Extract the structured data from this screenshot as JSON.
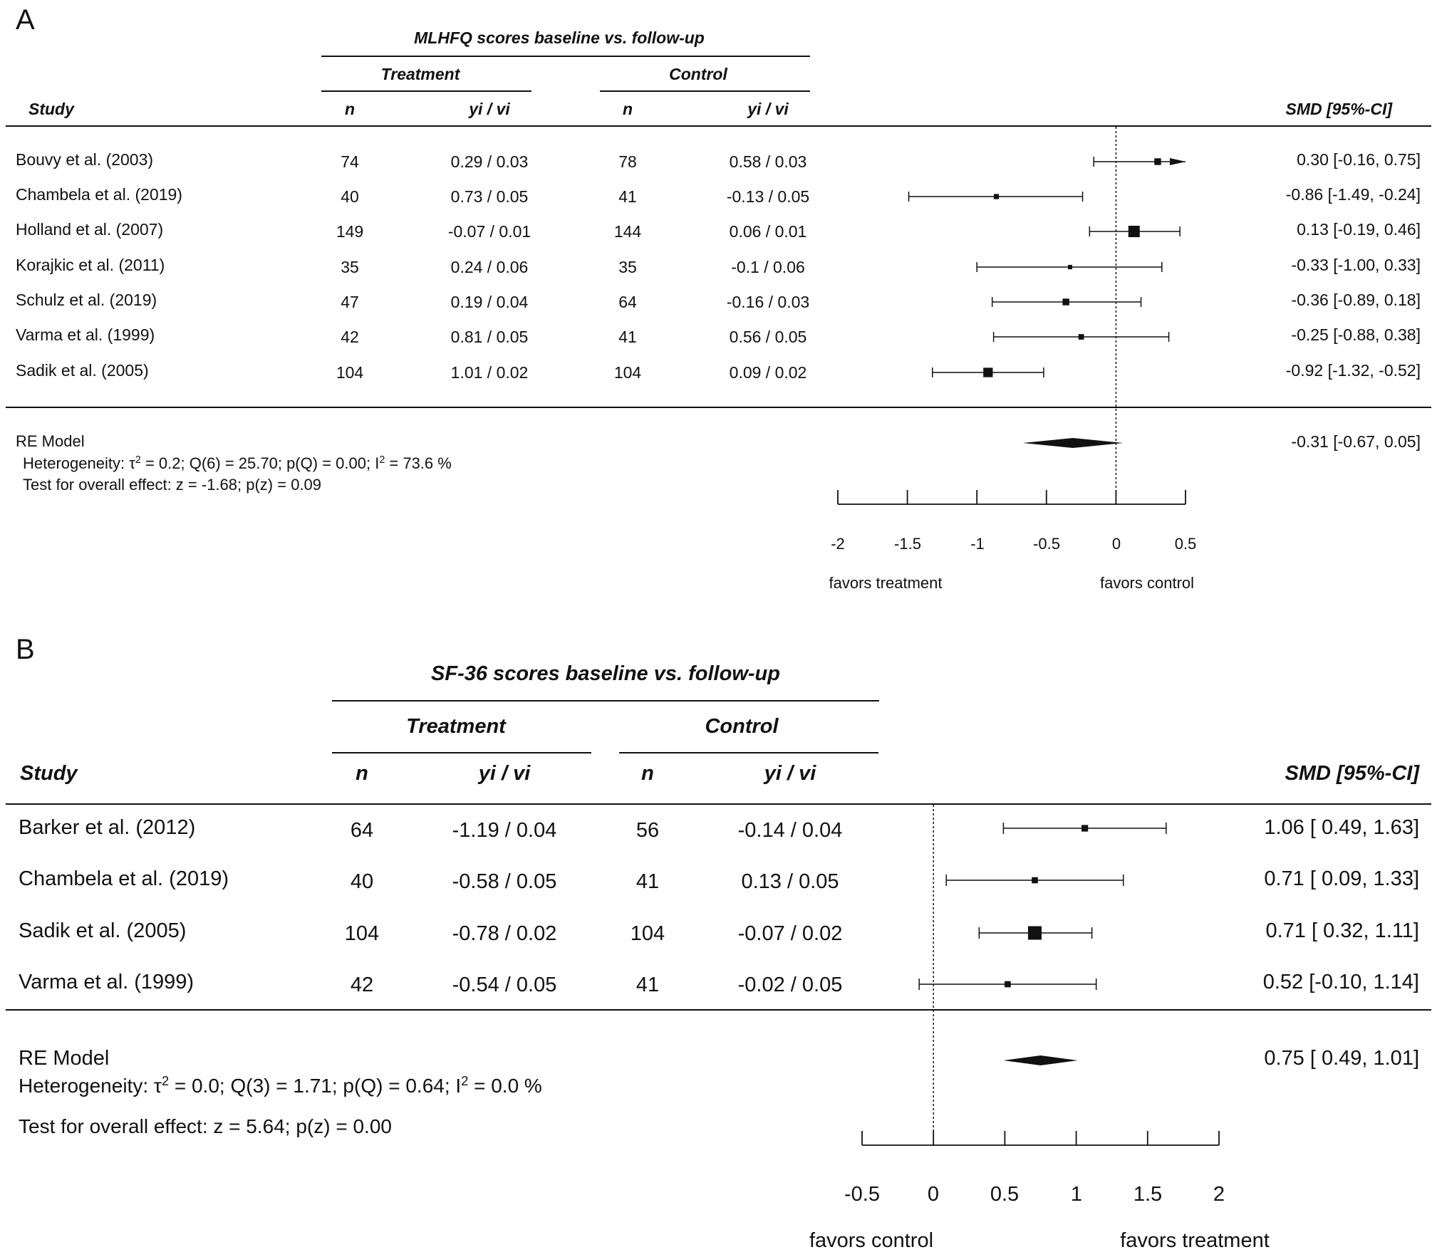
{
  "chart_data": [
    {
      "type": "forest",
      "panel_label": "A",
      "title": "MLHFQ scores baseline vs. follow-up",
      "group_labels": [
        "Treatment",
        "Control"
      ],
      "columns": [
        "Study",
        "n",
        "yi / vi",
        "n",
        "yi / vi",
        "SMD [95%-CI]"
      ],
      "studies": [
        {
          "study": "Bouvy et al. (2003)",
          "t_n": "74",
          "t_yv": "0.29 / 0.03",
          "c_n": "78",
          "c_yv": "0.58 / 0.03",
          "smd_text": "0.30 [-0.16,  0.75]",
          "smd": 0.3,
          "lo": -0.16,
          "hi": 0.75,
          "weight": 0.4
        },
        {
          "study": "Chambela et al. (2019)",
          "t_n": "40",
          "t_yv": "0.73 / 0.05",
          "c_n": "41",
          "c_yv": "-0.13 / 0.05",
          "smd_text": "-0.86 [-1.49, -0.24]",
          "smd": -0.86,
          "lo": -1.49,
          "hi": -0.24,
          "weight": 0.2
        },
        {
          "study": "Holland et al. (2007)",
          "t_n": "149",
          "t_yv": "-0.07 / 0.01",
          "c_n": "144",
          "c_yv": "0.06 / 0.01",
          "smd_text": "0.13 [-0.19,  0.46]",
          "smd": 0.13,
          "lo": -0.19,
          "hi": 0.46,
          "weight": 1.0
        },
        {
          "study": "Korajkic et al. (2011)",
          "t_n": "35",
          "t_yv": "0.24 / 0.06",
          "c_n": "35",
          "c_yv": "-0.1 / 0.06",
          "smd_text": "-0.33 [-1.00,  0.33]",
          "smd": -0.33,
          "lo": -1.0,
          "hi": 0.33,
          "weight": 0.1
        },
        {
          "study": "Schulz et al. (2019)",
          "t_n": "47",
          "t_yv": "0.19 / 0.04",
          "c_n": "64",
          "c_yv": "-0.16 / 0.03",
          "smd_text": "-0.36 [-0.89,  0.18]",
          "smd": -0.36,
          "lo": -0.89,
          "hi": 0.18,
          "weight": 0.4
        },
        {
          "study": "Varma et al. (1999)",
          "t_n": "42",
          "t_yv": "0.81 / 0.05",
          "c_n": "41",
          "c_yv": "0.56 / 0.05",
          "smd_text": "-0.25 [-0.88,  0.38]",
          "smd": -0.25,
          "lo": -0.88,
          "hi": 0.38,
          "weight": 0.25
        },
        {
          "study": "Sadik et al. (2005)",
          "t_n": "104",
          "t_yv": "1.01 / 0.02",
          "c_n": "104",
          "c_yv": "0.09 / 0.02",
          "smd_text": "-0.92 [-1.32, -0.52]",
          "smd": -0.92,
          "lo": -1.32,
          "hi": -0.52,
          "weight": 0.75
        }
      ],
      "summary": {
        "label": "RE Model",
        "smd_text": "-0.31 [-0.67,  0.05]",
        "smd": -0.31,
        "lo": -0.67,
        "hi": 0.05,
        "het_prefix": "Heterogeneity: τ",
        "het_mid": " = 0.2; Q(6) = 25.70; p(Q) = 0.00; I",
        "het_suffix": " = 73.6 %",
        "sup": "2",
        "overall": "Test for overall effect: z = -1.68; p(z) = 0.09"
      },
      "x_ticks": [
        -2,
        -1.5,
        -1,
        -0.5,
        0,
        0.5
      ],
      "x_tick_labels": [
        "-2",
        "-1.5",
        "-1",
        "-0.5",
        "0",
        "0.5"
      ],
      "xlim": [
        -2,
        0.5
      ],
      "favors_left": "favors treatment",
      "favors_right": "favors control"
    },
    {
      "type": "forest",
      "panel_label": "B",
      "title": "SF-36 scores baseline vs. follow-up",
      "group_labels": [
        "Treatment",
        "Control"
      ],
      "columns": [
        "Study",
        "n",
        "yi / vi",
        "n",
        "yi / vi",
        "SMD [95%-CI]"
      ],
      "studies": [
        {
          "study": "Barker et al. (2012)",
          "t_n": "64",
          "t_yv": "-1.19 / 0.04",
          "c_n": "56",
          "c_yv": "-0.14 / 0.04",
          "smd_text": "1.06 [ 0.49, 1.63]",
          "smd": 1.06,
          "lo": 0.49,
          "hi": 1.63,
          "weight": 0.25
        },
        {
          "study": "Chambela et al. (2019)",
          "t_n": "40",
          "t_yv": "-0.58 / 0.05",
          "c_n": "41",
          "c_yv": "0.13 / 0.05",
          "smd_text": "0.71 [ 0.09, 1.33]",
          "smd": 0.71,
          "lo": 0.09,
          "hi": 1.33,
          "weight": 0.2
        },
        {
          "study": "Sadik et al. (2005)",
          "t_n": "104",
          "t_yv": "-0.78 / 0.02",
          "c_n": "104",
          "c_yv": "-0.07 / 0.02",
          "smd_text": "0.71 [ 0.32, 1.11]",
          "smd": 0.71,
          "lo": 0.32,
          "hi": 1.11,
          "weight": 1.0
        },
        {
          "study": "Varma et al. (1999)",
          "t_n": "42",
          "t_yv": "-0.54 / 0.05",
          "c_n": "41",
          "c_yv": "-0.02 / 0.05",
          "smd_text": "0.52 [-0.10, 1.14]",
          "smd": 0.52,
          "lo": -0.1,
          "hi": 1.14,
          "weight": 0.2
        }
      ],
      "summary": {
        "label": "RE Model",
        "smd_text": "0.75 [ 0.49, 1.01]",
        "smd": 0.75,
        "lo": 0.49,
        "hi": 1.01,
        "het_prefix": "Heterogeneity: τ",
        "het_mid": " = 0.0; Q(3) = 1.71; p(Q) = 0.64; I",
        "het_suffix": " = 0.0 %",
        "sup": "2",
        "overall": "Test for overall effect: z = 5.64; p(z) = 0.00"
      },
      "x_ticks": [
        -0.5,
        0,
        0.5,
        1,
        1.5,
        2
      ],
      "x_tick_labels": [
        "-0.5",
        "0",
        "0.5",
        "1",
        "1.5",
        "2"
      ],
      "xlim": [
        -0.5,
        2
      ],
      "favors_left": "favors control",
      "favors_right": "favors treatment"
    }
  ]
}
